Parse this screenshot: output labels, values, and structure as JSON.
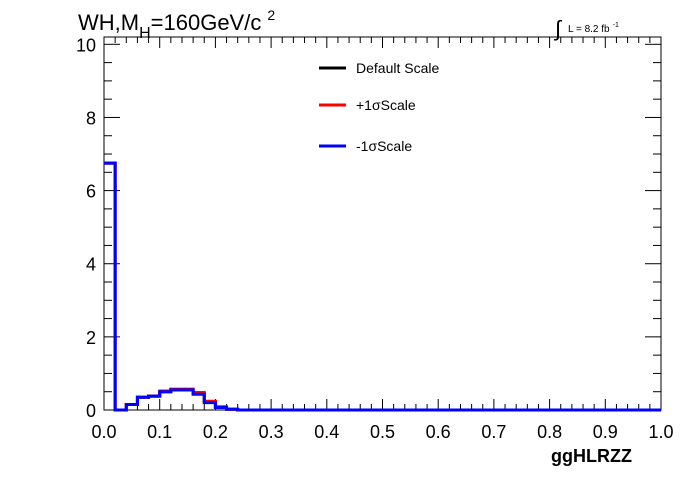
{
  "chart_data": {
    "type": "line",
    "title": {
      "prefix": "WH,M",
      "subscript": "H",
      "rest": "=160GeV/c",
      "superscript": "2"
    },
    "lumi_label": {
      "integral": "∫",
      "text": "L = 8.2 fb",
      "superscript": "-1"
    },
    "xlabel": "ggHLRZZ",
    "ylabel": "",
    "xlim": [
      0.0,
      1.0
    ],
    "ylim": [
      0,
      10.2
    ],
    "x_ticks": [
      "0.0",
      "0.1",
      "0.2",
      "0.3",
      "0.4",
      "0.5",
      "0.6",
      "0.7",
      "0.8",
      "0.9",
      "1.0"
    ],
    "y_ticks": [
      "0",
      "2",
      "4",
      "6",
      "8",
      "10"
    ],
    "legend_position": "top-center",
    "bin_edges": [
      0.0,
      0.02,
      0.04,
      0.06,
      0.08,
      0.1,
      0.12,
      0.14,
      0.16,
      0.18,
      0.2,
      0.22,
      0.24,
      0.26,
      0.28,
      0.3,
      0.32,
      0.34,
      0.36,
      0.38,
      0.4,
      0.42,
      0.44,
      0.46,
      0.48,
      0.5,
      0.52,
      0.54,
      0.56,
      0.58,
      0.6,
      0.62,
      0.64,
      0.66,
      0.68,
      0.7,
      0.72,
      0.74,
      0.76,
      0.78,
      0.8,
      0.82,
      0.84,
      0.86,
      0.88,
      0.9,
      0.92,
      0.94,
      0.96,
      0.98,
      1.0
    ],
    "series": [
      {
        "name": "Default Scale",
        "color": "#000000",
        "values": [
          6.75,
          0.0,
          0.15,
          0.35,
          0.38,
          0.5,
          0.55,
          0.55,
          0.45,
          0.22,
          0.08,
          0.02,
          0.0,
          0.0,
          0.0,
          0.0,
          0.0,
          0.0,
          0.0,
          0.0,
          0.0,
          0.0,
          0.0,
          0.0,
          0.0,
          0.0,
          0.0,
          0.0,
          0.0,
          0.0,
          0.0,
          0.0,
          0.0,
          0.0,
          0.0,
          0.0,
          0.0,
          0.0,
          0.0,
          0.0,
          0.0,
          0.0,
          0.0,
          0.0,
          0.0,
          0.0,
          0.0,
          0.0,
          0.0,
          0.0
        ]
      },
      {
        "name": "+1σScale",
        "color": "#ff0000",
        "values": [
          6.75,
          0.0,
          0.15,
          0.35,
          0.38,
          0.52,
          0.57,
          0.57,
          0.48,
          0.24,
          0.09,
          0.02,
          0.0,
          0.0,
          0.0,
          0.0,
          0.0,
          0.0,
          0.0,
          0.0,
          0.0,
          0.0,
          0.0,
          0.0,
          0.0,
          0.0,
          0.0,
          0.0,
          0.0,
          0.0,
          0.0,
          0.0,
          0.0,
          0.0,
          0.0,
          0.0,
          0.0,
          0.0,
          0.0,
          0.0,
          0.0,
          0.0,
          0.0,
          0.0,
          0.0,
          0.0,
          0.0,
          0.0,
          0.0,
          0.0
        ]
      },
      {
        "name": "-1σScale",
        "color": "#0000ff",
        "values": [
          6.75,
          0.0,
          0.15,
          0.35,
          0.38,
          0.5,
          0.55,
          0.55,
          0.43,
          0.2,
          0.07,
          0.02,
          0.0,
          0.0,
          0.0,
          0.0,
          0.0,
          0.0,
          0.0,
          0.0,
          0.0,
          0.0,
          0.0,
          0.0,
          0.0,
          0.0,
          0.0,
          0.0,
          0.0,
          0.0,
          0.0,
          0.0,
          0.0,
          0.0,
          0.0,
          0.0,
          0.0,
          0.0,
          0.0,
          0.0,
          0.0,
          0.0,
          0.0,
          0.0,
          0.0,
          0.0,
          0.0,
          0.0,
          0.0,
          0.0
        ]
      }
    ]
  }
}
